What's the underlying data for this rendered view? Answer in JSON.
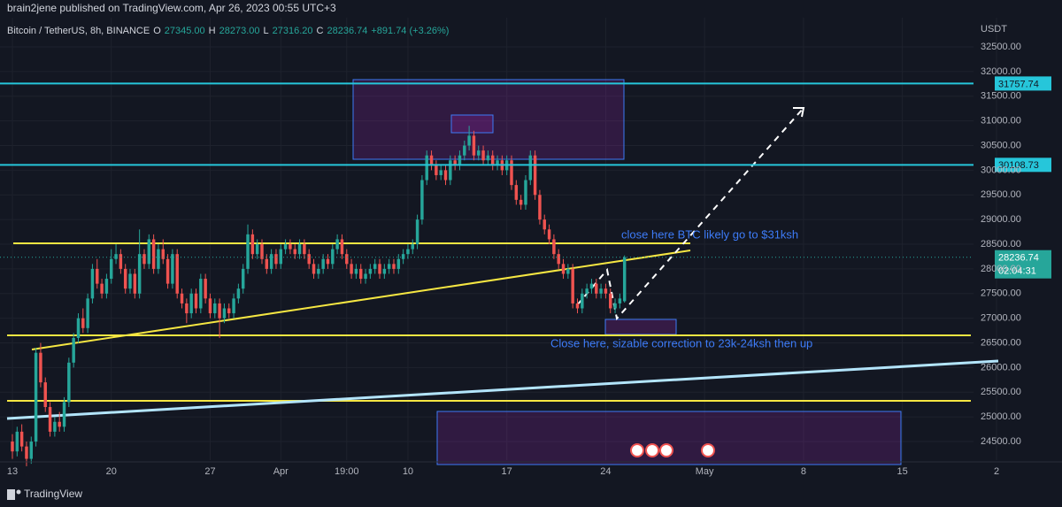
{
  "chart_data": {
    "type": "candlestick",
    "publisher_line": "brain2jene published on TradingView.com, Apr 26, 2023 00:55 UTC+3",
    "symbol": "Bitcoin / TetherUS, 8h, BINANCE",
    "legend_values": [
      {
        "key": "O",
        "text": "27345.00"
      },
      {
        "key": "H",
        "text": "28273.00"
      },
      {
        "key": "L",
        "text": "27316.20"
      },
      {
        "key": "C",
        "text": "28236.74"
      }
    ],
    "change": "+891.74 (+3.26%)",
    "currency": "USDT",
    "countdown": "02:04:31",
    "footer": "TradingView",
    "annotations": [
      "close here BTC likely go to $31ksh",
      "Close here, sizable correction to 23k-24ksh then up"
    ],
    "up_color": "#26a69a",
    "down_color": "#ef5350",
    "level_color": "#26c6da",
    "levels": [
      31757.74,
      30108.73
    ],
    "xlim": [
      -2.63,
      222.9
    ],
    "ylim": [
      24124,
      33092
    ],
    "xticks": [
      {
        "value": 0,
        "label": "13"
      },
      {
        "value": 21,
        "label": "20"
      },
      {
        "value": 42,
        "label": "27"
      },
      {
        "value": 57,
        "label": "Apr"
      },
      {
        "value": 71,
        "label": "19:00"
      },
      {
        "value": 84,
        "label": "10"
      },
      {
        "value": 105,
        "label": "17"
      },
      {
        "value": 126,
        "label": "24"
      },
      {
        "value": 147,
        "label": "May"
      },
      {
        "value": 168,
        "label": "8"
      },
      {
        "value": 189,
        "label": "15"
      },
      {
        "value": 209,
        "label": "2"
      }
    ],
    "yticks": [
      {
        "value": 24500,
        "label": "24500.00"
      },
      {
        "value": 25000,
        "label": "25000.00"
      },
      {
        "value": 25500,
        "label": "25500.00"
      },
      {
        "value": 26000,
        "label": "26000.00"
      },
      {
        "value": 26500,
        "label": "26500.00"
      },
      {
        "value": 27000,
        "label": "27000.00"
      },
      {
        "value": 27500,
        "label": "27500.00"
      },
      {
        "value": 28000,
        "label": "28000.00"
      },
      {
        "value": 28500,
        "label": "28500.00"
      },
      {
        "value": 29000,
        "label": "29000.00"
      },
      {
        "value": 29500,
        "label": "29500.00"
      },
      {
        "value": 30000,
        "label": "30000.00"
      },
      {
        "value": 30500,
        "label": "30500.00"
      },
      {
        "value": 31000,
        "label": "31000.00"
      },
      {
        "value": 31500,
        "label": "31500.00"
      },
      {
        "value": 32000,
        "label": "32000.00"
      },
      {
        "value": 32500,
        "label": "32500.00"
      }
    ],
    "grid": true,
    "ohlc": [
      [
        24500,
        24650,
        24150,
        24300
      ],
      [
        24300,
        24800,
        24200,
        24700
      ],
      [
        24700,
        24850,
        24300,
        24400
      ],
      [
        24400,
        24500,
        24000,
        24150
      ],
      [
        24150,
        24600,
        24050,
        24500
      ],
      [
        24500,
        26400,
        24400,
        26300
      ],
      [
        26300,
        26500,
        25600,
        25700
      ],
      [
        25700,
        25800,
        25100,
        25200
      ],
      [
        25200,
        25300,
        24600,
        24700
      ],
      [
        24700,
        25000,
        24600,
        24900
      ],
      [
        24900,
        25100,
        24700,
        24800
      ],
      [
        24800,
        25400,
        24700,
        25300
      ],
      [
        25300,
        26200,
        25200,
        26100
      ],
      [
        26100,
        26700,
        26000,
        26600
      ],
      [
        26600,
        27100,
        26500,
        27000
      ],
      [
        27000,
        27200,
        26700,
        26800
      ],
      [
        26800,
        27500,
        26700,
        27400
      ],
      [
        27400,
        28100,
        27300,
        28000
      ],
      [
        28000,
        28200,
        27600,
        27700
      ],
      [
        27700,
        27800,
        27400,
        27500
      ],
      [
        27500,
        27900,
        27400,
        27800
      ],
      [
        27800,
        28400,
        27700,
        28200
      ],
      [
        28200,
        28500,
        28100,
        28300
      ],
      [
        28300,
        28400,
        27900,
        28000
      ],
      [
        28000,
        28100,
        27500,
        27600
      ],
      [
        27600,
        28000,
        27500,
        27900
      ],
      [
        27900,
        28000,
        27400,
        27500
      ],
      [
        27500,
        28800,
        27400,
        28300
      ],
      [
        28300,
        28400,
        28000,
        28100
      ],
      [
        28100,
        28700,
        28000,
        28600
      ],
      [
        28600,
        28700,
        27900,
        28000
      ],
      [
        28000,
        28500,
        27900,
        28400
      ],
      [
        28400,
        28600,
        28100,
        28200
      ],
      [
        28200,
        28300,
        27600,
        27700
      ],
      [
        27700,
        28400,
        27600,
        28300
      ],
      [
        28300,
        28400,
        27400,
        27500
      ],
      [
        27500,
        27600,
        27200,
        27300
      ],
      [
        27300,
        27400,
        26900,
        27100
      ],
      [
        27100,
        27600,
        27000,
        27500
      ],
      [
        27500,
        27600,
        27100,
        27200
      ],
      [
        27200,
        27900,
        27100,
        27800
      ],
      [
        27800,
        27900,
        27300,
        27400
      ],
      [
        27400,
        27500,
        27000,
        27100
      ],
      [
        27100,
        27400,
        27000,
        27300
      ],
      [
        27300,
        27400,
        26600,
        27000
      ],
      [
        27000,
        27300,
        26900,
        27200
      ],
      [
        27200,
        27300,
        27000,
        27100
      ],
      [
        27100,
        27500,
        27000,
        27400
      ],
      [
        27400,
        27700,
        27300,
        27600
      ],
      [
        27600,
        28100,
        27500,
        28000
      ],
      [
        28000,
        28900,
        27900,
        28700
      ],
      [
        28700,
        28800,
        28200,
        28300
      ],
      [
        28300,
        28600,
        28200,
        28500
      ],
      [
        28500,
        28600,
        28100,
        28200
      ],
      [
        28200,
        28300,
        27900,
        28000
      ],
      [
        28000,
        28400,
        27900,
        28300
      ],
      [
        28300,
        28400,
        28000,
        28100
      ],
      [
        28100,
        28500,
        28000,
        28400
      ],
      [
        28400,
        28600,
        28300,
        28500
      ],
      [
        28500,
        28600,
        28300,
        28400
      ],
      [
        28400,
        28500,
        28200,
        28300
      ],
      [
        28300,
        28600,
        28200,
        28500
      ],
      [
        28500,
        28600,
        28200,
        28300
      ],
      [
        28300,
        28400,
        28000,
        28100
      ],
      [
        28100,
        28200,
        27800,
        27900
      ],
      [
        27900,
        28100,
        27800,
        28000
      ],
      [
        28000,
        28300,
        27900,
        28200
      ],
      [
        28200,
        28300,
        28000,
        28100
      ],
      [
        28100,
        28500,
        28000,
        28400
      ],
      [
        28400,
        28700,
        28300,
        28600
      ],
      [
        28600,
        28700,
        28200,
        28300
      ],
      [
        28300,
        28400,
        28000,
        28100
      ],
      [
        28100,
        28200,
        27800,
        27900
      ],
      [
        27900,
        28100,
        27800,
        28000
      ],
      [
        28000,
        28100,
        27700,
        27800
      ],
      [
        27800,
        28000,
        27700,
        27900
      ],
      [
        27900,
        28100,
        27800,
        28000
      ],
      [
        28000,
        28200,
        27900,
        28100
      ],
      [
        28100,
        28200,
        27800,
        27900
      ],
      [
        27900,
        28100,
        27800,
        28000
      ],
      [
        28000,
        28200,
        27900,
        28100
      ],
      [
        28100,
        28200,
        27900,
        28000
      ],
      [
        28000,
        28300,
        27900,
        28200
      ],
      [
        28200,
        28400,
        28100,
        28300
      ],
      [
        28300,
        28500,
        28200,
        28400
      ],
      [
        28400,
        28600,
        28300,
        28500
      ],
      [
        28500,
        29100,
        28400,
        29000
      ],
      [
        29000,
        29900,
        28900,
        29800
      ],
      [
        29800,
        30400,
        29700,
        30300
      ],
      [
        30300,
        30400,
        30000,
        30100
      ],
      [
        30100,
        30200,
        29800,
        29900
      ],
      [
        29900,
        30100,
        29800,
        30000
      ],
      [
        30000,
        30100,
        29700,
        29800
      ],
      [
        29800,
        30300,
        29700,
        30200
      ],
      [
        30200,
        30300,
        30000,
        30100
      ],
      [
        30100,
        30400,
        30000,
        30300
      ],
      [
        30300,
        30600,
        30200,
        30500
      ],
      [
        30500,
        30900,
        30400,
        30700
      ],
      [
        30700,
        30800,
        30200,
        30300
      ],
      [
        30300,
        30500,
        30200,
        30400
      ],
      [
        30400,
        30500,
        30100,
        30200
      ],
      [
        30200,
        30400,
        30100,
        30300
      ],
      [
        30300,
        30400,
        30000,
        30100
      ],
      [
        30100,
        30300,
        30000,
        30200
      ],
      [
        30200,
        30300,
        29900,
        30000
      ],
      [
        30000,
        30300,
        29900,
        30200
      ],
      [
        30200,
        30300,
        29600,
        29700
      ],
      [
        29700,
        29800,
        29300,
        29400
      ],
      [
        29400,
        29500,
        29200,
        29300
      ],
      [
        29300,
        29900,
        29200,
        29800
      ],
      [
        29800,
        30400,
        29700,
        30300
      ],
      [
        30300,
        30400,
        29400,
        29500
      ],
      [
        29500,
        29600,
        28900,
        29000
      ],
      [
        29000,
        29100,
        28700,
        28800
      ],
      [
        28800,
        28900,
        28500,
        28600
      ],
      [
        28600,
        28700,
        28200,
        28300
      ],
      [
        28300,
        28400,
        28000,
        28100
      ],
      [
        28100,
        28200,
        27800,
        27900
      ],
      [
        27900,
        28100,
        27800,
        28000
      ],
      [
        28000,
        28100,
        27200,
        27300
      ],
      [
        27300,
        27400,
        27100,
        27200
      ],
      [
        27200,
        27600,
        27100,
        27500
      ],
      [
        27500,
        27700,
        27400,
        27600
      ],
      [
        27600,
        27800,
        27500,
        27700
      ],
      [
        27700,
        27800,
        27400,
        27500
      ],
      [
        27500,
        27700,
        27400,
        27600
      ],
      [
        27600,
        27700,
        27400,
        27500
      ],
      [
        27500,
        27600,
        27100,
        27200
      ],
      [
        27200,
        27400,
        27100,
        27300
      ],
      [
        27300,
        27500,
        27200,
        27400
      ],
      [
        27345,
        28273,
        27316.2,
        28236.74
      ]
    ]
  }
}
